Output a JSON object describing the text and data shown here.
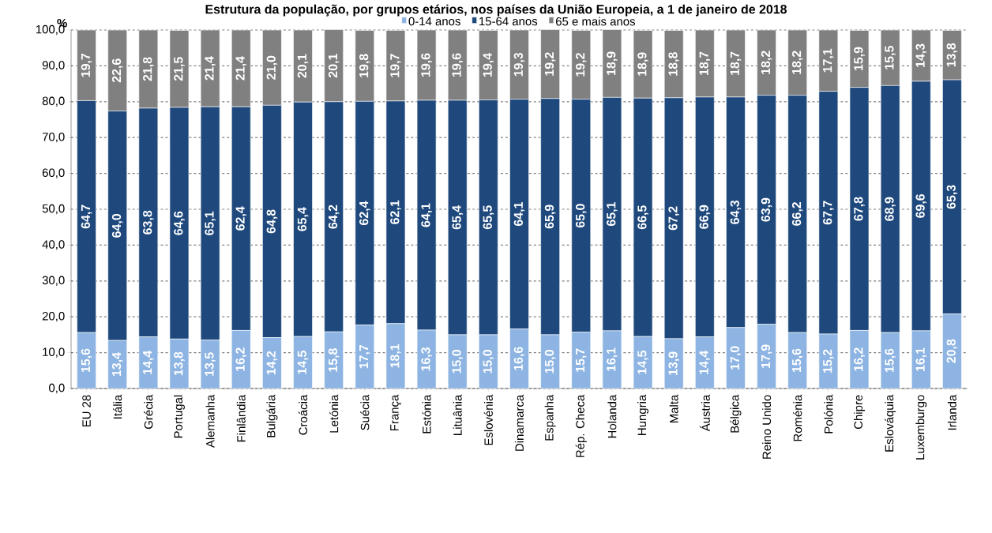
{
  "chart_data": {
    "type": "bar",
    "stacked": true,
    "title": "Estrutura da população, por grupos etários, nos países da União Europeia, a 1 de janeiro de 2018",
    "ylabel": "%",
    "categories": [
      "EU 28",
      "Itália",
      "Grécia",
      "Portugal",
      "Alemanha",
      "Finlândia",
      "Bulgária",
      "Croácia",
      "Letónia",
      "Suécia",
      "França",
      "Estónia",
      "Lituânia",
      "Eslovénia",
      "Dinamarca",
      "Espanha",
      "Rép. Checa",
      "Holanda",
      "Hungria",
      "Malta",
      "Áustria",
      "Bélgica",
      "Reino Unido",
      "Roménia",
      "Polónia",
      "Chipre",
      "Eslováquia",
      "Luxemburgo",
      "Irlanda"
    ],
    "series": [
      {
        "name": "0-14 anos",
        "color": "#8db4e2",
        "values": [
          15.6,
          13.4,
          14.4,
          13.8,
          13.5,
          16.2,
          14.2,
          14.5,
          15.8,
          17.7,
          18.1,
          16.3,
          15.0,
          15.0,
          16.6,
          15.0,
          15.7,
          16.1,
          14.5,
          13.9,
          14.4,
          17.0,
          17.9,
          15.6,
          15.2,
          16.2,
          15.6,
          16.1,
          20.8
        ],
        "value_labels": [
          "15,6",
          "13,4",
          "14,4",
          "13,8",
          "13,5",
          "16,2",
          "14,2",
          "14,5",
          "15,8",
          "17,7",
          "18,1",
          "16,3",
          "15,0",
          "15,0",
          "16,6",
          "15,0",
          "15,7",
          "16,1",
          "14,5",
          "13,9",
          "14,4",
          "17,0",
          "17,9",
          "15,6",
          "15,2",
          "16,2",
          "15,6",
          "16,1",
          "20,8"
        ]
      },
      {
        "name": "15-64 anos",
        "color": "#1f497d",
        "values": [
          64.7,
          64.0,
          63.8,
          64.6,
          65.1,
          62.4,
          64.8,
          65.4,
          64.2,
          62.4,
          62.1,
          64.1,
          65.4,
          65.5,
          64.1,
          65.9,
          65.0,
          65.1,
          66.5,
          67.2,
          66.9,
          64.3,
          63.9,
          66.2,
          67.7,
          67.8,
          68.9,
          69.6,
          65.3
        ],
        "value_labels": [
          "64,7",
          "64,0",
          "63,8",
          "64,6",
          "65,1",
          "62,4",
          "64,8",
          "65,4",
          "64,2",
          "62,4",
          "62,1",
          "64,1",
          "65,4",
          "65,5",
          "64,1",
          "65,9",
          "65,0",
          "65,1",
          "66,5",
          "67,2",
          "66,9",
          "64,3",
          "63,9",
          "66,2",
          "67,7",
          "67,8",
          "68,9",
          "69,6",
          "65,3"
        ]
      },
      {
        "name": "65 e mais anos",
        "color": "#808080",
        "values": [
          19.7,
          22.6,
          21.8,
          21.5,
          21.4,
          21.4,
          21.0,
          20.1,
          20.1,
          19.8,
          19.7,
          19.6,
          19.6,
          19.4,
          19.3,
          19.2,
          19.2,
          18.9,
          18.9,
          18.8,
          18.7,
          18.7,
          18.2,
          18.2,
          17.1,
          15.9,
          15.5,
          14.3,
          13.8
        ],
        "value_labels": [
          "19,7",
          "22,6",
          "21,8",
          "21,5",
          "21,4",
          "21,4",
          "21,0",
          "20,1",
          "20,1",
          "19,8",
          "19,7",
          "19,6",
          "19,6",
          "19,4",
          "19,3",
          "19,2",
          "19,2",
          "18,9",
          "18,9",
          "18,8",
          "18,7",
          "18,7",
          "18,2",
          "18,2",
          "17,1",
          "15,9",
          "15,5",
          "14,3",
          "13,8"
        ]
      }
    ],
    "ylim": [
      0,
      100
    ],
    "yticks": [
      {
        "value": 0,
        "label": "0,0"
      },
      {
        "value": 10,
        "label": "10,0"
      },
      {
        "value": 20,
        "label": "20,0"
      },
      {
        "value": 30,
        "label": "30,0"
      },
      {
        "value": 40,
        "label": "40,0"
      },
      {
        "value": 50,
        "label": "50,0"
      },
      {
        "value": 60,
        "label": "60,0"
      },
      {
        "value": 70,
        "label": "70,0"
      },
      {
        "value": 80,
        "label": "80,0"
      },
      {
        "value": 90,
        "label": "90,0"
      },
      {
        "value": 100,
        "label": "100,0"
      }
    ],
    "grid": "y",
    "legend": "top"
  }
}
